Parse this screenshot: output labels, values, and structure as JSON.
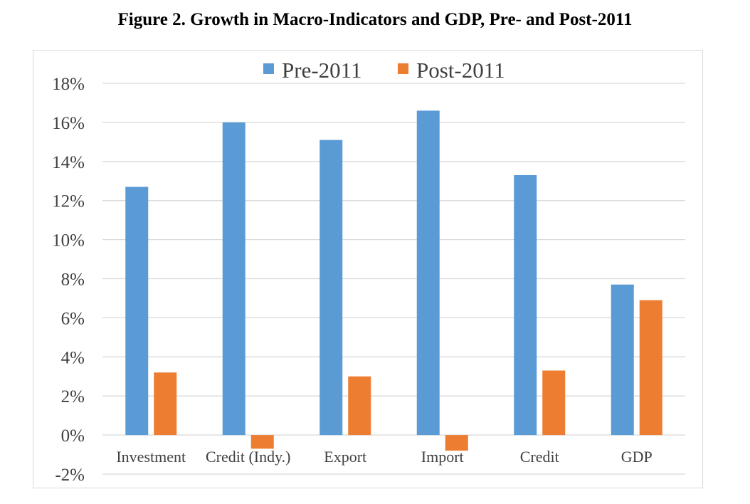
{
  "chart_data": {
    "type": "bar",
    "title": "Figure 2. Growth in Macro-Indicators and GDP, Pre- and Post-2011",
    "categories": [
      "Investment",
      "Credit (Indy.)",
      "Export",
      "Import",
      "Credit",
      "GDP"
    ],
    "series": [
      {
        "name": "Pre-2011",
        "color": "#5b9bd5",
        "values": [
          12.7,
          16.0,
          15.1,
          16.6,
          13.3,
          7.7
        ]
      },
      {
        "name": "Post-2011",
        "color": "#ed7d31",
        "values": [
          3.2,
          -0.7,
          3.0,
          -0.8,
          3.3,
          6.9
        ]
      }
    ],
    "ylim": [
      -2,
      18
    ],
    "ytick_step": 2,
    "ytick_format": "percent",
    "grid": true,
    "legend": "top-center",
    "gridline_color": "#d9d9d9",
    "axis_label_color": "#404040"
  }
}
